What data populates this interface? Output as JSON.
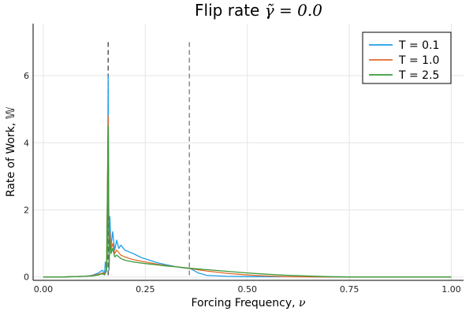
{
  "chart_data": {
    "type": "line",
    "title_prefix": "Flip rate ",
    "title_math": "γ̃ = 0.0",
    "xlabel_prefix": "Forcing Frequency, ",
    "xlabel_math": "ν",
    "ylabel": "Rate of Work, 𝕎",
    "xlim": [
      -0.025,
      1.03
    ],
    "ylim": [
      -0.1,
      7.55
    ],
    "x_ticks": [
      0.0,
      0.25,
      0.5,
      0.75,
      1.0
    ],
    "x_tick_labels": [
      "0.00",
      "0.25",
      "0.50",
      "0.75",
      "1.00"
    ],
    "y_ticks": [
      0,
      2,
      4,
      6
    ],
    "y_tick_labels": [
      "0",
      "2",
      "4",
      "6"
    ],
    "grid": true,
    "legend_position": "top-right",
    "vlines": [
      {
        "x": 0.159,
        "y_from": 0,
        "y_to": 7.0,
        "color": "#555555",
        "style": "dashed"
      },
      {
        "x": 0.358,
        "y_from": 0,
        "y_to": 7.0,
        "color": "#888888",
        "style": "dashed"
      }
    ],
    "series": [
      {
        "name": "T = 0.1",
        "color": "#1f9ee8",
        "x": [
          0.0,
          0.05,
          0.1,
          0.12,
          0.135,
          0.145,
          0.15,
          0.152,
          0.155,
          0.157,
          0.159,
          0.161,
          0.163,
          0.166,
          0.17,
          0.175,
          0.18,
          0.185,
          0.19,
          0.2,
          0.21,
          0.22,
          0.24,
          0.26,
          0.28,
          0.3,
          0.32,
          0.34,
          0.36,
          0.38,
          0.4,
          0.45,
          0.5,
          0.75,
          1.0
        ],
        "y": [
          0.0,
          0.0,
          0.02,
          0.05,
          0.12,
          0.2,
          0.1,
          0.45,
          0.2,
          0.7,
          6.0,
          0.2,
          1.8,
          0.9,
          1.35,
          0.8,
          1.1,
          0.85,
          0.95,
          0.8,
          0.75,
          0.7,
          0.58,
          0.5,
          0.42,
          0.37,
          0.32,
          0.28,
          0.25,
          0.12,
          0.05,
          0.02,
          0.01,
          0.0,
          0.0
        ]
      },
      {
        "name": "T = 1.0",
        "color": "#e26a2c",
        "x": [
          0.0,
          0.05,
          0.1,
          0.12,
          0.135,
          0.145,
          0.15,
          0.155,
          0.159,
          0.161,
          0.163,
          0.166,
          0.17,
          0.175,
          0.18,
          0.19,
          0.2,
          0.22,
          0.25,
          0.28,
          0.3,
          0.33,
          0.36,
          0.4,
          0.45,
          0.5,
          0.55,
          0.6,
          0.7,
          0.75,
          1.0
        ],
        "y": [
          0.0,
          0.0,
          0.02,
          0.04,
          0.08,
          0.12,
          0.08,
          0.25,
          4.8,
          0.3,
          1.35,
          0.8,
          1.0,
          0.7,
          0.8,
          0.65,
          0.6,
          0.52,
          0.45,
          0.38,
          0.34,
          0.3,
          0.25,
          0.18,
          0.11,
          0.06,
          0.03,
          0.01,
          0.0,
          0.0,
          0.0
        ]
      },
      {
        "name": "T = 2.5",
        "color": "#3a9a3a",
        "x": [
          0.0,
          0.05,
          0.1,
          0.12,
          0.135,
          0.145,
          0.15,
          0.155,
          0.159,
          0.161,
          0.163,
          0.166,
          0.17,
          0.175,
          0.18,
          0.19,
          0.2,
          0.22,
          0.25,
          0.28,
          0.3,
          0.33,
          0.36,
          0.4,
          0.45,
          0.5,
          0.55,
          0.6,
          0.65,
          0.7,
          0.75,
          1.0
        ],
        "y": [
          0.0,
          0.0,
          0.02,
          0.03,
          0.06,
          0.1,
          0.06,
          0.2,
          4.5,
          0.25,
          1.1,
          0.7,
          0.85,
          0.6,
          0.65,
          0.55,
          0.5,
          0.45,
          0.4,
          0.36,
          0.33,
          0.3,
          0.26,
          0.22,
          0.17,
          0.12,
          0.08,
          0.05,
          0.03,
          0.01,
          0.0,
          0.0
        ]
      }
    ]
  }
}
